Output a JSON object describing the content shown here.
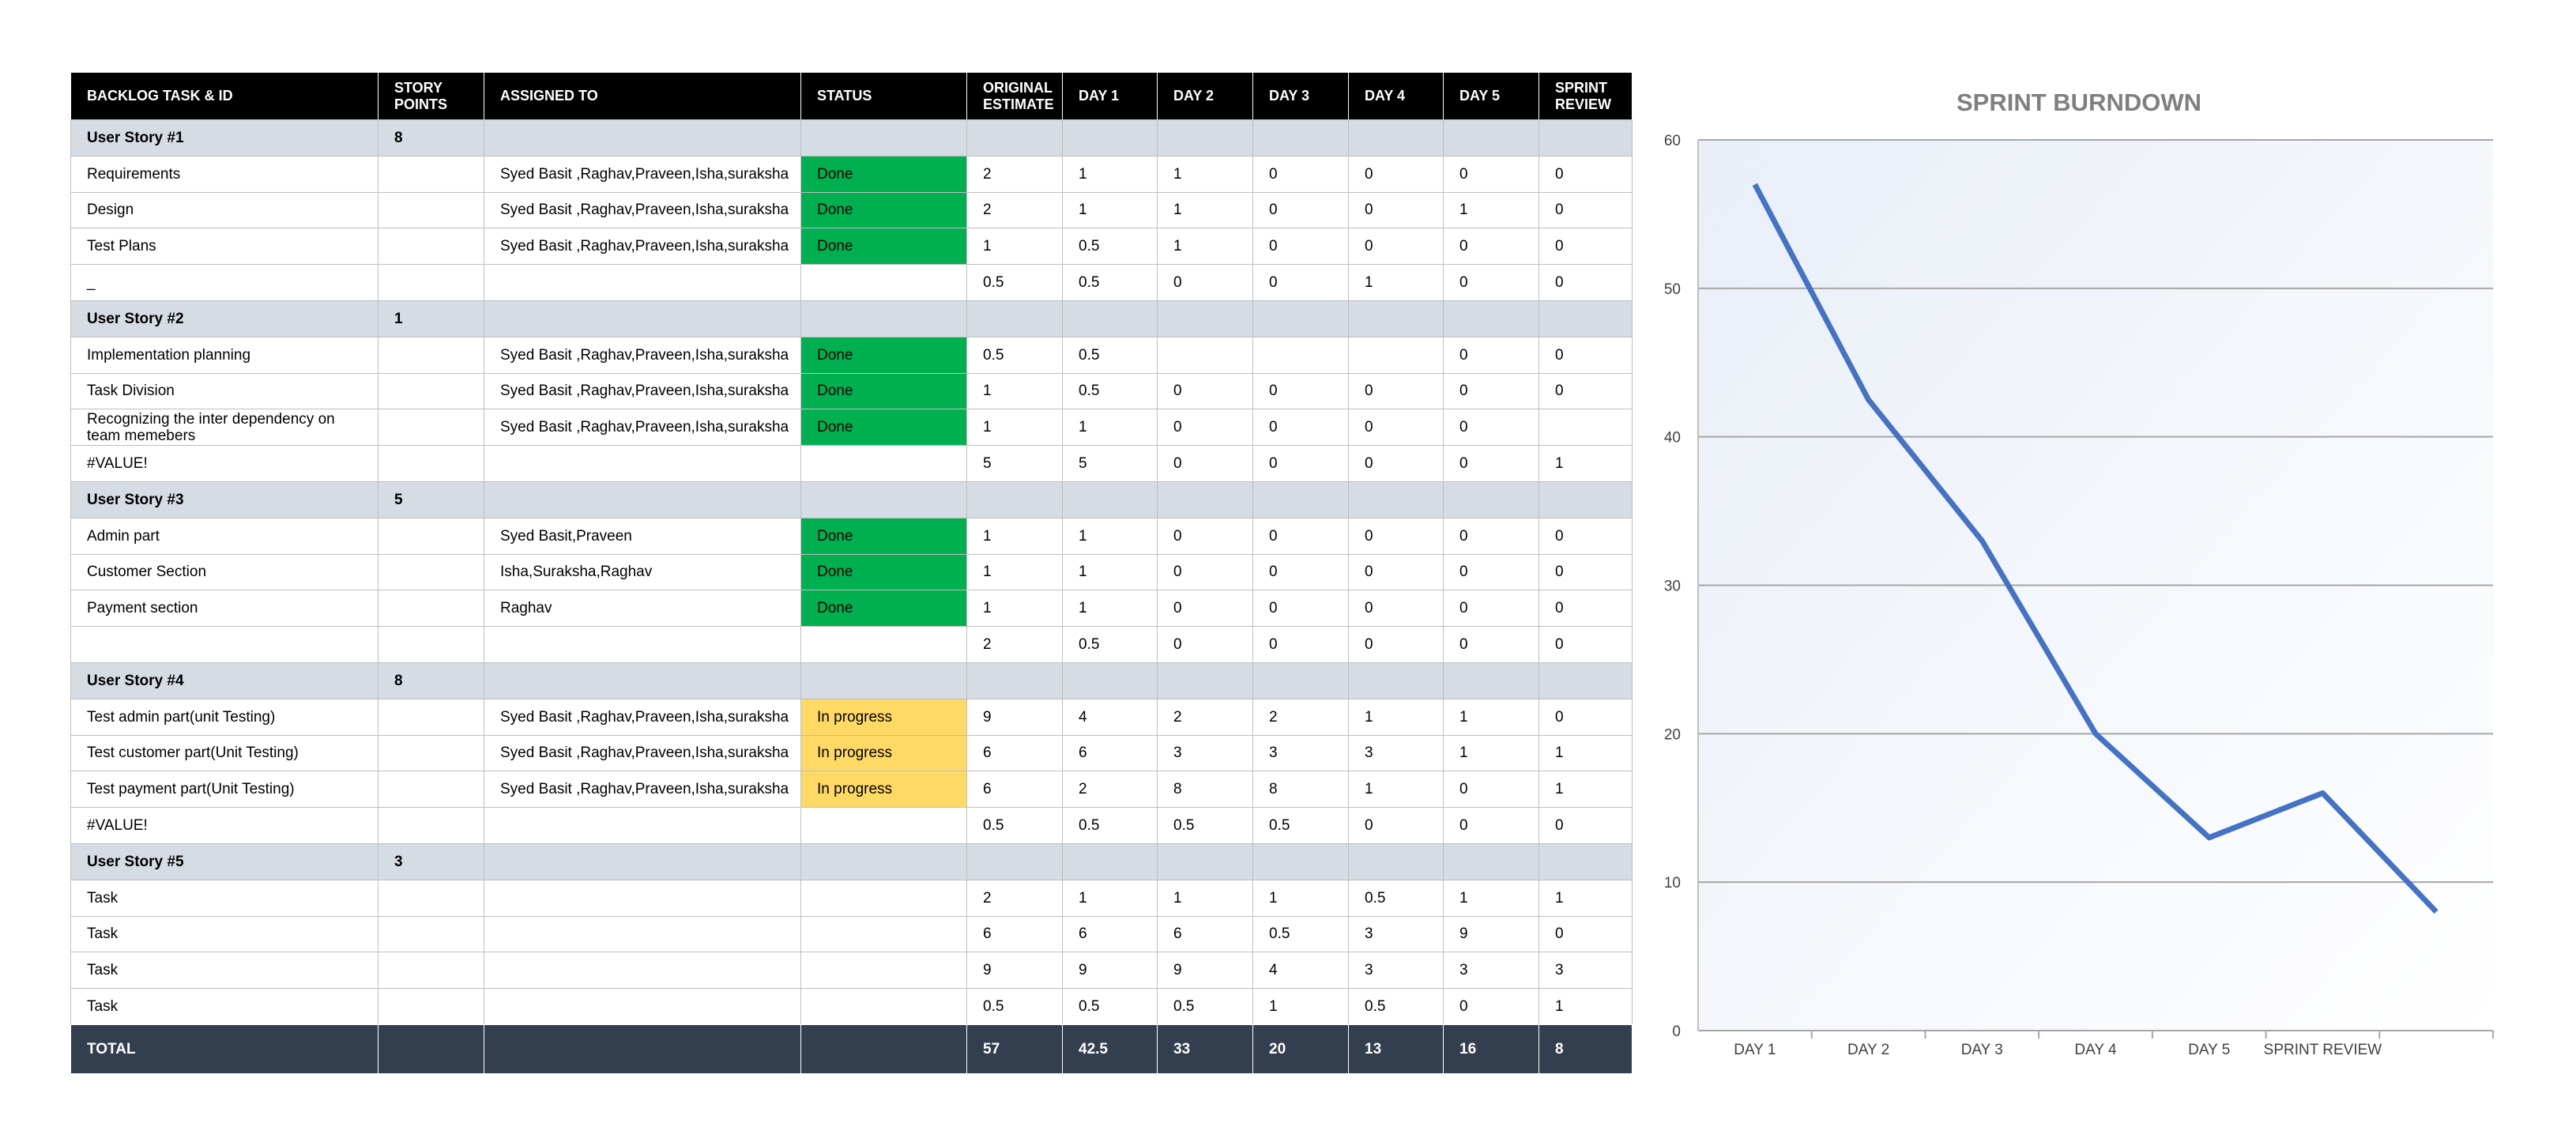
{
  "table": {
    "headers": [
      "BACKLOG TASK & ID",
      "STORY POINTS",
      "ASSIGNED TO",
      "STATUS",
      "ORIGINAL ESTIMATE",
      "DAY 1",
      "DAY 2",
      "DAY 3",
      "DAY 4",
      "DAY 5",
      "SPRINT REVIEW"
    ],
    "stories": [
      {
        "title": "User Story #1",
        "points": 8,
        "tasks": [
          {
            "name": "Requirements",
            "assigned": "Syed Basit ,Raghav,Praveen,Isha,suraksha",
            "status": {
              "label": "Done",
              "color": "#00b050"
            },
            "values": [
              2,
              1,
              1,
              0,
              0,
              0,
              0
            ]
          },
          {
            "name": "Design",
            "assigned": "Syed Basit ,Raghav,Praveen,Isha,suraksha",
            "status": {
              "label": "Done",
              "color": "#00b050"
            },
            "values": [
              2,
              1,
              1,
              0,
              0,
              1,
              0
            ]
          },
          {
            "name": "Test Plans",
            "assigned": "Syed Basit ,Raghav,Praveen,Isha,suraksha",
            "status": {
              "label": "Done",
              "color": "#00b050"
            },
            "values": [
              1,
              0.5,
              1,
              0,
              0,
              0,
              0
            ]
          },
          {
            "name": "_",
            "assigned": null,
            "status": null,
            "values": [
              0.5,
              0.5,
              0,
              0,
              1,
              0,
              0
            ]
          }
        ]
      },
      {
        "title": "User Story #2",
        "points": 1,
        "tasks": [
          {
            "name": "Implementation planning",
            "assigned": "Syed Basit ,Raghav,Praveen,Isha,suraksha",
            "status": {
              "label": "Done",
              "color": "#00b050"
            },
            "values": [
              0.5,
              0.5,
              null,
              null,
              null,
              0,
              0
            ]
          },
          {
            "name": "Task Division",
            "assigned": "Syed Basit ,Raghav,Praveen,Isha,suraksha",
            "status": {
              "label": "Done",
              "color": "#00b050"
            },
            "values": [
              1,
              0.5,
              0,
              0,
              0,
              0,
              0
            ]
          },
          {
            "name": "Recognizing the inter dependency on team memebers",
            "assigned": "Syed Basit ,Raghav,Praveen,Isha,suraksha",
            "status": {
              "label": "Done",
              "color": "#00b050"
            },
            "values": [
              1,
              1,
              0,
              0,
              0,
              0,
              null
            ]
          },
          {
            "name": "#VALUE!",
            "assigned": null,
            "status": null,
            "values": [
              5,
              5,
              0,
              0,
              0,
              0,
              1
            ]
          }
        ]
      },
      {
        "title": "User Story #3",
        "points": 5,
        "tasks": [
          {
            "name": "Admin part",
            "assigned": "Syed Basit,Praveen",
            "status": {
              "label": "Done",
              "color": "#00b050"
            },
            "values": [
              1,
              1,
              0,
              0,
              0,
              0,
              0
            ]
          },
          {
            "name": "Customer Section",
            "assigned": "Isha,Suraksha,Raghav",
            "status": {
              "label": "Done",
              "color": "#00b050"
            },
            "values": [
              1,
              1,
              0,
              0,
              0,
              0,
              0
            ]
          },
          {
            "name": "Payment section",
            "assigned": "Raghav",
            "status": {
              "label": "Done",
              "color": "#00b050"
            },
            "values": [
              1,
              1,
              0,
              0,
              0,
              0,
              0
            ]
          },
          {
            "name": null,
            "assigned": null,
            "status": null,
            "values": [
              2,
              0.5,
              0,
              0,
              0,
              0,
              0
            ]
          }
        ]
      },
      {
        "title": "User Story #4",
        "points": 8,
        "tasks": [
          {
            "name": "Test admin part(unit Testing)",
            "assigned": "Syed Basit ,Raghav,Praveen,Isha,suraksha",
            "status": {
              "label": "In progress",
              "color": "#ffd966"
            },
            "values": [
              9,
              4,
              2,
              2,
              1,
              1,
              0
            ]
          },
          {
            "name": "Test customer part(Unit Testing)",
            "assigned": "Syed Basit ,Raghav,Praveen,Isha,suraksha",
            "status": {
              "label": "In progress",
              "color": "#ffd966"
            },
            "values": [
              6,
              6,
              3,
              3,
              3,
              1,
              1
            ]
          },
          {
            "name": "Test payment part(Unit Testing)",
            "assigned": "Syed Basit ,Raghav,Praveen,Isha,suraksha",
            "status": {
              "label": "In progress",
              "color": "#ffd966"
            },
            "values": [
              6,
              2,
              8,
              8,
              1,
              0,
              1
            ]
          },
          {
            "name": "#VALUE!",
            "assigned": null,
            "status": null,
            "values": [
              0.5,
              0.5,
              0.5,
              0.5,
              0,
              0,
              0
            ]
          }
        ]
      },
      {
        "title": "User Story #5",
        "points": 3,
        "tasks": [
          {
            "name": "Task",
            "assigned": null,
            "status": null,
            "values": [
              2,
              1,
              1,
              1,
              0.5,
              1,
              1
            ]
          },
          {
            "name": "Task",
            "assigned": null,
            "status": null,
            "values": [
              6,
              6,
              6,
              0.5,
              3,
              9,
              0
            ]
          },
          {
            "name": "Task",
            "assigned": null,
            "status": null,
            "values": [
              9,
              9,
              9,
              4,
              3,
              3,
              3
            ]
          },
          {
            "name": "Task",
            "assigned": null,
            "status": null,
            "values": [
              0.5,
              0.5,
              0.5,
              1,
              0.5,
              0,
              1
            ]
          }
        ]
      }
    ],
    "total": {
      "label": "TOTAL",
      "values": [
        57,
        42.5,
        33,
        20,
        13,
        16,
        8
      ]
    }
  },
  "chart_data": {
    "type": "line",
    "title": "SPRINT BURNDOWN",
    "categories": [
      "DAY 1",
      "DAY 2",
      "DAY 3",
      "DAY 4",
      "DAY 5",
      "SPRINT REVIEW",
      null
    ],
    "values": [
      57,
      42.5,
      33,
      20,
      13,
      16,
      8
    ],
    "color": "#4472c4",
    "ylim": [
      0,
      60
    ],
    "yticks": [
      0,
      10,
      20,
      30,
      40,
      50,
      60
    ],
    "grid": true
  }
}
